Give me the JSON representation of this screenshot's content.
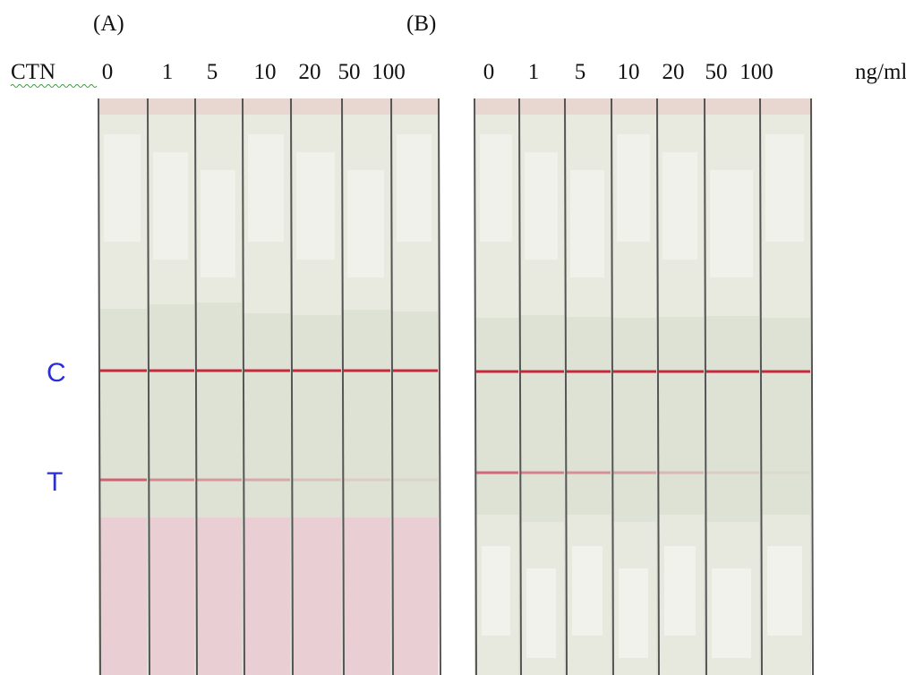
{
  "panels": [
    {
      "label": "(A)",
      "row_label": "CTN",
      "concentrations": [
        0,
        1,
        5,
        10,
        20,
        50,
        100
      ]
    },
    {
      "label": "(B)",
      "concentrations": [
        0,
        1,
        5,
        10,
        20,
        50,
        100
      ],
      "unit": "ng/ml"
    }
  ],
  "line_labels": {
    "control": "C",
    "test": "T"
  }
}
